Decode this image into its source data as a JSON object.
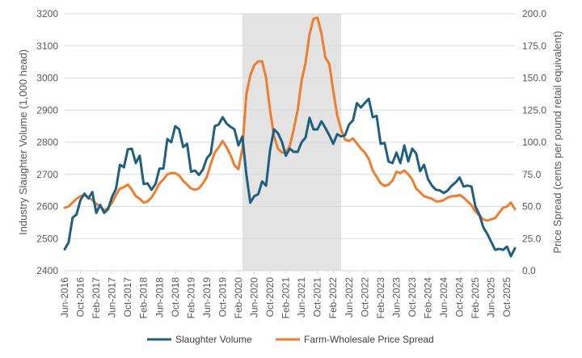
{
  "chart_data": {
    "type": "line",
    "title": "",
    "ylabel": "Industry Slaughter Volume (1,000 head)",
    "y2label": "Price Spread (cents per pound retail equivalent)",
    "ylim": [
      2400,
      3200
    ],
    "y2lim": [
      0,
      200
    ],
    "yticks": [
      2400,
      2500,
      2600,
      2700,
      2800,
      2900,
      3000,
      3100,
      3200
    ],
    "y2ticks": [
      "0.0",
      "25.0",
      "50.0",
      "75.0",
      "100.0",
      "125.0",
      "150.0",
      "175.0",
      "200.0"
    ],
    "x_start": "Jun-2016",
    "x_end": "Dec-2025",
    "x_tick_labels": [
      "Jun-2016",
      "Oct-2016",
      "Feb-2017",
      "Jun-2017",
      "Oct-2017",
      "Feb-2018",
      "Jun-2018",
      "Oct-2018",
      "Feb-2019",
      "Jun-2019",
      "Oct-2019",
      "Feb-2020",
      "Jun-2020",
      "Oct-2020",
      "Feb-2021",
      "Jun-2021",
      "Oct-2021",
      "Feb-2022",
      "Jun-2022",
      "Oct-2022",
      "Feb-2023",
      "Jun-2023",
      "Oct-2023",
      "Feb-2024",
      "Jun-2024",
      "Oct-2024",
      "Feb-2025",
      "Jun-2025",
      "Oct-2025"
    ],
    "shaded_region": {
      "from": "Mar-2020",
      "to": "Apr-2022",
      "color": "#e3e3e3"
    },
    "grid": "horizontal",
    "legend": "bottom",
    "series": [
      {
        "name": "Slaughter Volume",
        "axis": "left",
        "color": "#1f5f7f",
        "values": [
          2467,
          2488,
          2565,
          2575,
          2620,
          2640,
          2625,
          2645,
          2580,
          2605,
          2580,
          2592,
          2630,
          2655,
          2730,
          2722,
          2778,
          2780,
          2735,
          2758,
          2670,
          2672,
          2652,
          2670,
          2718,
          2718,
          2810,
          2800,
          2850,
          2840,
          2785,
          2795,
          2708,
          2712,
          2698,
          2715,
          2750,
          2765,
          2850,
          2855,
          2878,
          2858,
          2848,
          2840,
          2790,
          2818,
          2700,
          2612,
          2632,
          2638,
          2678,
          2665,
          2775,
          2840,
          2828,
          2802,
          2758,
          2780,
          2770,
          2770,
          2800,
          2815,
          2876,
          2840,
          2840,
          2865,
          2845,
          2822,
          2795,
          2825,
          2818,
          2822,
          2855,
          2868,
          2922,
          2908,
          2922,
          2935,
          2878,
          2882,
          2795,
          2798,
          2740,
          2735,
          2768,
          2735,
          2790,
          2740,
          2780,
          2765,
          2710,
          2730,
          2685,
          2665,
          2652,
          2650,
          2642,
          2650,
          2665,
          2675,
          2690,
          2662,
          2665,
          2662,
          2600,
          2575,
          2535,
          2515,
          2490,
          2465,
          2468,
          2465,
          2475,
          2445,
          2470
        ]
      },
      {
        "name": "Farm-Wholesale Price Spread",
        "axis": "right",
        "color": "#ed7d31",
        "values": [
          49,
          50,
          53,
          56,
          58,
          59,
          57,
          55,
          52,
          50,
          47,
          49,
          53,
          59,
          64,
          65,
          67,
          63,
          58,
          56,
          53,
          54,
          57,
          62,
          68,
          71,
          75,
          76,
          76,
          74,
          70,
          67,
          64,
          63,
          64,
          68,
          73,
          83,
          92,
          96,
          101,
          96,
          90,
          82,
          79,
          95,
          137,
          152,
          160,
          163,
          163,
          150,
          125,
          105,
          95,
          92,
          92,
          97,
          110,
          125,
          148,
          162,
          184,
          196,
          197,
          185,
          166,
          161,
          140,
          121,
          110,
          102,
          101,
          103,
          99,
          95,
          92,
          87,
          78,
          73,
          68,
          66,
          67,
          70,
          77,
          76,
          78,
          75,
          71,
          64,
          61,
          58,
          57,
          56,
          54,
          54,
          55,
          57,
          58,
          58,
          59,
          57,
          54,
          51,
          46,
          43,
          40,
          39,
          40,
          41,
          45,
          49,
          50,
          53,
          48
        ]
      }
    ]
  }
}
